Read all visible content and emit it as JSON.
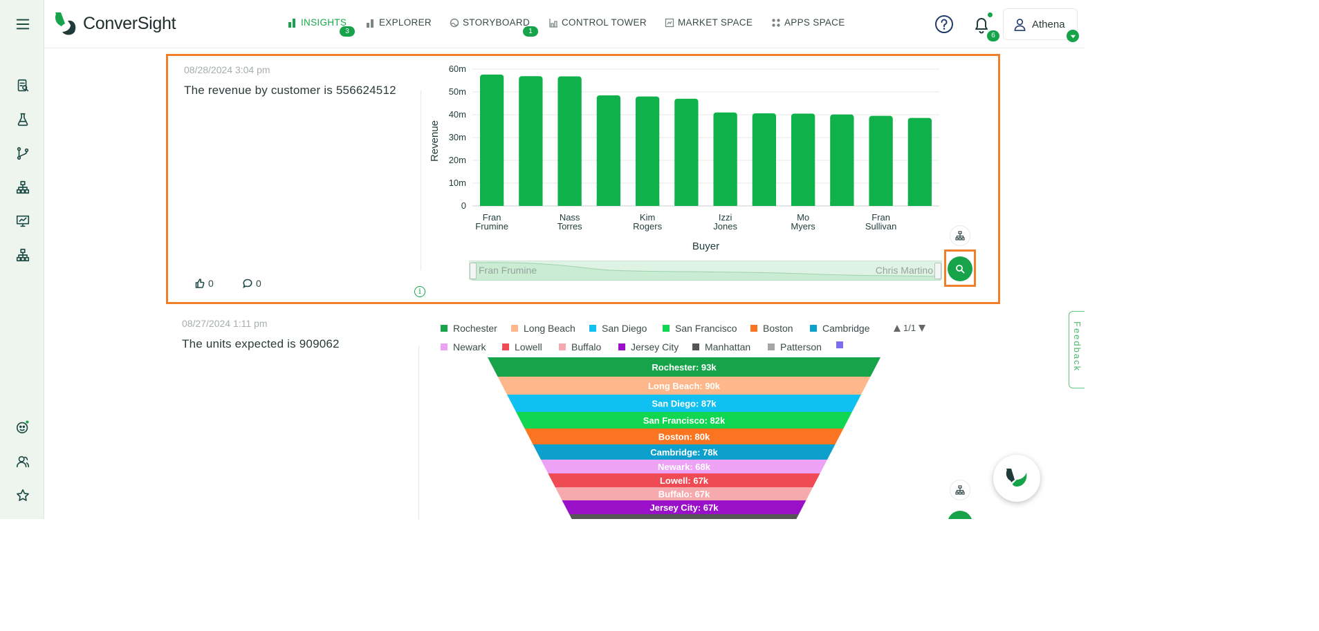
{
  "app": {
    "brand": "ConverSight"
  },
  "colors": {
    "accent": "#16a34a",
    "bar": "#0fb24a",
    "selection": "#f07f2a",
    "rail": "#eef4ee"
  },
  "rail": {
    "icons": [
      "menu-icon",
      "report-icon",
      "flask-icon",
      "branch-icon",
      "hierarchy-icon",
      "presentation-icon",
      "hierarchy-icon",
      "assistant-icon",
      "users-icon",
      "star-icon"
    ]
  },
  "nav": [
    {
      "label": "INSIGHTS",
      "badge": "3",
      "icon": "bar-chart-icon",
      "active": true
    },
    {
      "label": "EXPLORER",
      "badge": "",
      "icon": "explorer-chart-icon"
    },
    {
      "label": "STORYBOARD",
      "badge": "1",
      "icon": "storyboard-icon"
    },
    {
      "label": "CONTROL TOWER",
      "badge": "",
      "icon": "tower-icon"
    },
    {
      "label": "MARKET SPACE",
      "badge": "",
      "icon": "market-icon"
    },
    {
      "label": "APPS SPACE",
      "badge": "",
      "icon": "grid-icon"
    }
  ],
  "header": {
    "notifications": "6",
    "user": "Athena"
  },
  "cards": [
    {
      "timestamp": "08/28/2024 3:04 pm",
      "text": "The revenue by customer is 556624512",
      "likes": "0",
      "comments": "0",
      "slider": {
        "start": "Fran Frumine",
        "end": "Chris Martino"
      }
    },
    {
      "timestamp": "08/27/2024 1:11 pm",
      "text": "The units expected is 909062",
      "legend_pager": "1/1"
    }
  ],
  "chart_data": [
    {
      "type": "bar",
      "xlabel": "Buyer",
      "ylabel": "Revenue",
      "ylim": [
        0,
        60000000
      ],
      "yticks": [
        "0",
        "10m",
        "20m",
        "30m",
        "40m",
        "50m",
        "60m"
      ],
      "categories": [
        "Fran Frumine",
        "",
        "Nass Torres",
        "",
        "Kim Rogers",
        "",
        "Izzi Jones",
        "",
        "Mo Myers",
        "",
        "Fran Sullivan",
        ""
      ],
      "values": [
        57600000,
        56900000,
        56800000,
        48500000,
        48000000,
        47000000,
        41000000,
        40600000,
        40500000,
        40100000,
        39500000,
        38600000
      ],
      "grid": true
    },
    {
      "type": "funnel",
      "legend": [
        {
          "name": "Rochester",
          "color": "#16a34a"
        },
        {
          "name": "Long Beach",
          "color": "#fdb78a"
        },
        {
          "name": "San Diego",
          "color": "#10c0f0"
        },
        {
          "name": "San Francisco",
          "color": "#11d652"
        },
        {
          "name": "Boston",
          "color": "#fb7421"
        },
        {
          "name": "Cambridge",
          "color": "#0ea0cc"
        },
        {
          "name": "Newark",
          "color": "#eea2f6"
        },
        {
          "name": "Lowell",
          "color": "#ee4b55"
        },
        {
          "name": "Buffalo",
          "color": "#f6aaae"
        },
        {
          "name": "Jersey City",
          "color": "#9a0fc8"
        },
        {
          "name": "Manhattan",
          "color": "#555555"
        },
        {
          "name": "Patterson",
          "color": "#a6a6a6"
        },
        {
          "name": "",
          "color": "#7b6cf0"
        }
      ],
      "stages": [
        {
          "name": "Rochester",
          "label": "Rochester: 93k",
          "value": 93000
        },
        {
          "name": "Long Beach",
          "label": "Long Beach: 90k",
          "value": 90000
        },
        {
          "name": "San Diego",
          "label": "San Diego: 87k",
          "value": 87000
        },
        {
          "name": "San Francisco",
          "label": "San Francisco: 82k",
          "value": 82000
        },
        {
          "name": "Boston",
          "label": "Boston: 80k",
          "value": 80000
        },
        {
          "name": "Cambridge",
          "label": "Cambridge: 78k",
          "value": 78000
        },
        {
          "name": "Newark",
          "label": "Newark: 68k",
          "value": 68000
        },
        {
          "name": "Lowell",
          "label": "Lowell: 67k",
          "value": 67000
        },
        {
          "name": "Buffalo",
          "label": "Buffalo: 67k",
          "value": 67000
        },
        {
          "name": "Jersey City",
          "label": "Jersey City: 67k",
          "value": 67000
        },
        {
          "name": "Manhattan",
          "label": "",
          "value": 65000
        }
      ]
    }
  ],
  "feedback": {
    "label": "Feedback"
  }
}
